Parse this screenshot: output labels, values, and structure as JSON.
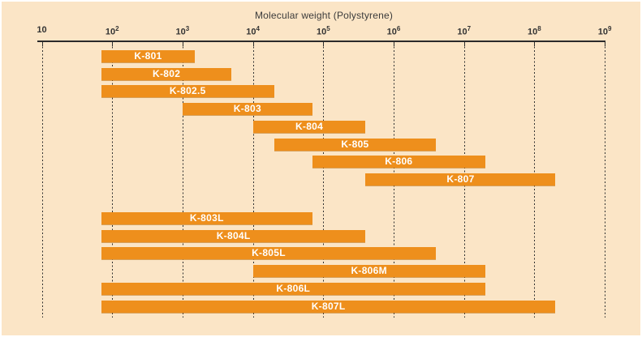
{
  "figure": {
    "colors": {
      "background": "#fbe5c6",
      "bar": "#ee8f1c",
      "bar_label": "#ffffff",
      "axis": "#2a2a2a",
      "grid": "#2f2f2f"
    }
  },
  "chart_data": {
    "type": "bar",
    "orientation": "horizontal-range",
    "title": "Molecular weight (Polystyrene)",
    "x_scale": "log",
    "xlim": [
      10,
      1000000000
    ],
    "grid": "dashed-vertical",
    "legend": "none",
    "x_ticks": [
      {
        "label": "10",
        "value": 10
      },
      {
        "label": "10^2",
        "value": 100
      },
      {
        "label": "10^3",
        "value": 1000
      },
      {
        "label": "10^4",
        "value": 10000
      },
      {
        "label": "10^5",
        "value": 100000
      },
      {
        "label": "10^6",
        "value": 1000000
      },
      {
        "label": "10^7",
        "value": 10000000
      },
      {
        "label": "10^8",
        "value": 100000000
      },
      {
        "label": "10^9",
        "value": 1000000000
      }
    ],
    "series": [
      {
        "name": "K-801",
        "range": [
          70,
          1500
        ],
        "group": 0
      },
      {
        "name": "K-802",
        "range": [
          70,
          5000
        ],
        "group": 0
      },
      {
        "name": "K-802.5",
        "range": [
          70,
          20000
        ],
        "group": 0
      },
      {
        "name": "K-803",
        "range": [
          1000,
          70000
        ],
        "group": 0
      },
      {
        "name": "K-804",
        "range": [
          10000,
          400000
        ],
        "group": 0
      },
      {
        "name": "K-805",
        "range": [
          20000,
          4000000
        ],
        "group": 0
      },
      {
        "name": "K-806",
        "range": [
          70000,
          20000000
        ],
        "group": 0
      },
      {
        "name": "K-807",
        "range": [
          400000,
          200000000
        ],
        "group": 0
      },
      {
        "name": "K-803L",
        "range": [
          70,
          70000
        ],
        "group": 1
      },
      {
        "name": "K-804L",
        "range": [
          70,
          400000
        ],
        "group": 1
      },
      {
        "name": "K-805L",
        "range": [
          70,
          4000000
        ],
        "group": 1
      },
      {
        "name": "K-806M",
        "range": [
          10000,
          20000000
        ],
        "group": 1
      },
      {
        "name": "K-806L",
        "range": [
          70,
          20000000
        ],
        "group": 1
      },
      {
        "name": "K-807L",
        "range": [
          70,
          200000000
        ],
        "group": 1
      }
    ]
  }
}
